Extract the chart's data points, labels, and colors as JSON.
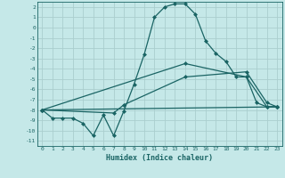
{
  "xlabel": "Humidex (Indice chaleur)",
  "bg_color": "#c5e8e8",
  "grid_color": "#aacece",
  "line_color": "#1a6464",
  "xlim": [
    -0.5,
    23.5
  ],
  "ylim": [
    -11.5,
    2.5
  ],
  "xticks": [
    0,
    1,
    2,
    3,
    4,
    5,
    6,
    7,
    8,
    9,
    10,
    11,
    12,
    13,
    14,
    15,
    16,
    17,
    18,
    19,
    20,
    21,
    22,
    23
  ],
  "yticks": [
    2,
    1,
    0,
    -1,
    -2,
    -3,
    -4,
    -5,
    -6,
    -7,
    -8,
    -9,
    -10,
    -11
  ],
  "line1_x": [
    0,
    1,
    2,
    3,
    4,
    5,
    6,
    7,
    8,
    9,
    10,
    11,
    12,
    13,
    14,
    15,
    16,
    17,
    18,
    19,
    20,
    21,
    22,
    23
  ],
  "line1_y": [
    -8.0,
    -8.8,
    -8.8,
    -8.8,
    -9.3,
    -10.5,
    -8.5,
    -10.5,
    -8.1,
    -5.5,
    -2.6,
    1.0,
    2.0,
    2.3,
    2.3,
    1.3,
    -1.3,
    -2.5,
    -3.3,
    -4.8,
    -4.8,
    -7.3,
    -7.7,
    -7.7
  ],
  "line2_x": [
    0,
    7,
    8,
    14,
    20,
    22,
    23
  ],
  "line2_y": [
    -8.0,
    -8.3,
    -7.5,
    -4.8,
    -4.3,
    -7.3,
    -7.7
  ],
  "line3_x": [
    0,
    14,
    20,
    22,
    23
  ],
  "line3_y": [
    -8.0,
    -3.5,
    -4.8,
    -7.7,
    -7.7
  ],
  "line4_x": [
    0,
    23
  ],
  "line4_y": [
    -8.0,
    -7.7
  ]
}
